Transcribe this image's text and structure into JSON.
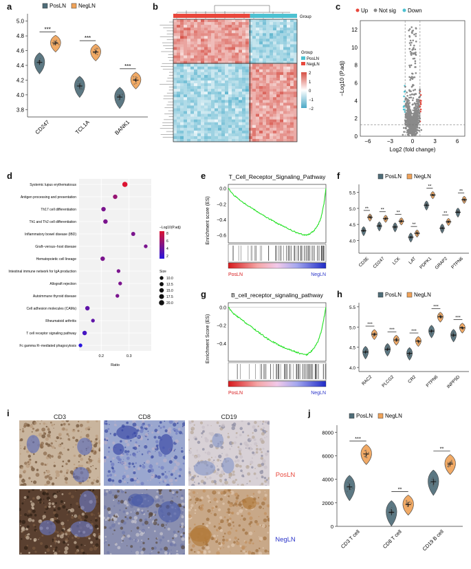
{
  "colors": {
    "pos": "#4f6d79",
    "neg": "#f0a35a",
    "up": "#e8473c",
    "down": "#4ec1d1",
    "notsig": "#8a8a8a",
    "green": "#1fe01f",
    "red": "#d7191c",
    "blue": "#2b35c9"
  },
  "panels": {
    "a": "a",
    "b": "b",
    "c": "c",
    "d": "d",
    "e": "e",
    "f": "f",
    "g": "g",
    "h": "h",
    "i": "i",
    "j": "j"
  },
  "legend": {
    "pos": "PosLN",
    "neg": "NegLN",
    "up": "Up",
    "notsig": "Not sig",
    "down": "Down",
    "group": "Group"
  },
  "sig": {
    "three": "***",
    "two": "**"
  },
  "chart_data": [
    {
      "id": "a",
      "type": "violin",
      "ylim": [
        3.7,
        5.1
      ],
      "yticks": [
        3.8,
        4.0,
        4.2,
        4.4,
        4.6,
        4.8,
        5.0
      ],
      "ytick_labels": [
        "3.8",
        "4.0",
        "4.2",
        "4.4",
        "4.6",
        "4.8",
        "5.0"
      ],
      "categories": [
        "CD247",
        "TCL1A",
        "BANK1"
      ],
      "series": [
        {
          "name": "PosLN",
          "means": [
            4.44,
            4.12,
            3.97
          ]
        },
        {
          "name": "NegLN",
          "means": [
            4.7,
            4.58,
            4.2
          ]
        }
      ],
      "significance": [
        "***",
        "***",
        "***"
      ]
    },
    {
      "id": "b",
      "type": "heatmap",
      "title": "Group",
      "groups": [
        "PosLN",
        "NegLN"
      ],
      "scale_ticks": [
        2,
        1,
        0,
        -1,
        -2
      ],
      "scale_labels": [
        "2",
        "1",
        "0",
        "−1",
        "−2"
      ]
    },
    {
      "id": "c",
      "type": "scatter",
      "xlabel": "Log2 (fold change)",
      "ylabel": "−Log10 (P.adj)",
      "xlim": [
        -7,
        7
      ],
      "ylim": [
        0,
        13
      ],
      "xticks": [
        -6,
        -3,
        0,
        3,
        6
      ],
      "xtick_labels": [
        "−6",
        "−3",
        "0",
        "3",
        "6"
      ],
      "yticks": [
        0,
        2,
        4,
        6,
        8,
        10,
        12
      ],
      "ytick_labels": [
        "0",
        "2",
        "4",
        "6",
        "8",
        "10",
        "12"
      ],
      "threshold_y": 1.3,
      "fc_threshold": 1
    },
    {
      "id": "d",
      "type": "dot",
      "xlabel": "Ratio",
      "xlim": [
        0.12,
        0.38
      ],
      "xticks": [
        0.2,
        0.3
      ],
      "xtick_labels": [
        "0.2",
        "0.3"
      ],
      "pathways": [
        {
          "label": "Systemic lupus erythematosus",
          "ratio": 0.285,
          "logp": 8.5,
          "size": 20
        },
        {
          "label": "Antigen processing and presentation",
          "ratio": 0.25,
          "logp": 6.0,
          "size": 15
        },
        {
          "label": "Th17 cell differentiation",
          "ratio": 0.208,
          "logp": 5.0,
          "size": 15
        },
        {
          "label": "Th1 and Th2 cell differentiation",
          "ratio": 0.215,
          "logp": 5.0,
          "size": 15
        },
        {
          "label": "Inflammatory bowel disease (IBD)",
          "ratio": 0.315,
          "logp": 5.0,
          "size": 12.5
        },
        {
          "label": "Graft−versus−host disease",
          "ratio": 0.36,
          "logp": 5.0,
          "size": 10
        },
        {
          "label": "Hematopoietic cell lineage",
          "ratio": 0.205,
          "logp": 5.0,
          "size": 15
        },
        {
          "label": "Intestinal immune network for IgA production",
          "ratio": 0.262,
          "logp": 5.0,
          "size": 10
        },
        {
          "label": "Allograft rejection",
          "ratio": 0.268,
          "logp": 5.0,
          "size": 10
        },
        {
          "label": "Autoimmune thyroid disease",
          "ratio": 0.258,
          "logp": 5.0,
          "size": 10
        },
        {
          "label": "Cell adhesion molecules (CAMs)",
          "ratio": 0.15,
          "logp": 4.0,
          "size": 15
        },
        {
          "label": "Rheumatoid arthritis",
          "ratio": 0.17,
          "logp": 4.0,
          "size": 10
        },
        {
          "label": "T cell receptor signaling pathway",
          "ratio": 0.14,
          "logp": 3.0,
          "size": 15
        },
        {
          "label": "Fc gamma R−mediated phagocytosis",
          "ratio": 0.125,
          "logp": 2.0,
          "size": 10
        }
      ],
      "color_title": "−Log10(P.adj)",
      "color_ticks": [
        "8",
        "6",
        "4",
        "2"
      ],
      "size_title": "Size",
      "size_ticks": [
        "10.0",
        "12.5",
        "15.0",
        "17.5",
        "20.0"
      ]
    },
    {
      "id": "e",
      "type": "line",
      "title": "T_Cell_Receptor_Signaling_Pathway",
      "ylabel": "Enrichment score (ES)",
      "ylim": [
        -0.7,
        0.05
      ],
      "yticks": [
        0,
        -0.2,
        -0.4,
        -0.6
      ],
      "ytick_labels": [
        "0.0",
        "−0.2",
        "−0.4",
        "−0.6"
      ],
      "x": [
        0,
        0.05,
        0.1,
        0.15,
        0.2,
        0.25,
        0.3,
        0.35,
        0.4,
        0.45,
        0.5,
        0.55,
        0.6,
        0.65,
        0.7,
        0.75,
        0.8,
        0.84,
        0.88,
        0.92,
        0.95,
        0.98,
        1.0
      ],
      "values": [
        0,
        -0.08,
        -0.13,
        -0.18,
        -0.22,
        -0.26,
        -0.3,
        -0.34,
        -0.38,
        -0.41,
        -0.45,
        -0.48,
        -0.51,
        -0.54,
        -0.57,
        -0.59,
        -0.6,
        -0.58,
        -0.54,
        -0.47,
        -0.38,
        -0.2,
        0.0
      ],
      "low_label": "PosLN",
      "high_label": "NegLN"
    },
    {
      "id": "f",
      "type": "violin",
      "ylim": [
        3.6,
        5.75
      ],
      "yticks": [
        4.0,
        4.5,
        5.0,
        5.5
      ],
      "ytick_labels": [
        "4.0",
        "4.5",
        "5.0",
        "5.5"
      ],
      "categories": [
        "CD3E",
        "CD247",
        "LCK",
        "LAT",
        "PDPK1",
        "GRAP2",
        "PTPN6"
      ],
      "series": [
        {
          "name": "PosLN",
          "means": [
            4.3,
            4.45,
            4.42,
            4.1,
            5.1,
            4.38,
            4.88
          ]
        },
        {
          "name": "NegLN",
          "means": [
            4.72,
            4.68,
            4.6,
            4.22,
            5.42,
            4.58,
            5.27
          ]
        }
      ],
      "significance": [
        "**",
        "**",
        "**",
        "**",
        "**",
        "**",
        "**"
      ]
    },
    {
      "id": "g",
      "type": "line",
      "title": "B_cell_receptor_signaling_pathway",
      "ylabel": "Enrichment Score (ES)",
      "ylim": [
        -0.6,
        0.05
      ],
      "yticks": [
        0,
        -0.2,
        -0.4
      ],
      "ytick_labels": [
        "0.0",
        "−0.2",
        "−0.4"
      ],
      "x": [
        0,
        0.05,
        0.1,
        0.15,
        0.2,
        0.25,
        0.3,
        0.35,
        0.4,
        0.45,
        0.5,
        0.55,
        0.6,
        0.65,
        0.7,
        0.75,
        0.8,
        0.84,
        0.88,
        0.92,
        0.95,
        0.98,
        1.0
      ],
      "values": [
        0,
        -0.07,
        -0.11,
        -0.15,
        -0.19,
        -0.23,
        -0.27,
        -0.31,
        -0.35,
        -0.38,
        -0.41,
        -0.44,
        -0.46,
        -0.48,
        -0.5,
        -0.52,
        -0.53,
        -0.5,
        -0.45,
        -0.38,
        -0.28,
        -0.12,
        0.0
      ],
      "low_label": "PosLN",
      "high_label": "NegLN"
    },
    {
      "id": "h",
      "type": "violin",
      "ylim": [
        3.9,
        5.6
      ],
      "yticks": [
        4.0,
        4.5,
        5.0,
        5.5
      ],
      "ytick_labels": [
        "4.0",
        "4.5",
        "5.0",
        "5.5"
      ],
      "categories": [
        "RAC2",
        "PLCG2",
        "CR2",
        "PTPN6",
        "INPP5D"
      ],
      "series": [
        {
          "name": "PosLN",
          "means": [
            4.38,
            4.45,
            4.35,
            4.9,
            4.8
          ]
        },
        {
          "name": "NegLN",
          "means": [
            4.82,
            4.68,
            4.65,
            5.25,
            4.98
          ]
        }
      ],
      "significance": [
        "***",
        "***",
        "***",
        "***",
        "***"
      ]
    },
    {
      "id": "j",
      "type": "violin",
      "ylim": [
        0,
        8600
      ],
      "yticks": [
        0,
        2000,
        4000,
        6000,
        8000
      ],
      "ytick_labels": [
        "0",
        "2000",
        "4000",
        "6000",
        "8000"
      ],
      "categories": [
        "CD3 T cell",
        "CD8 T cell",
        "CD19 B cell"
      ],
      "series": [
        {
          "name": "PosLN",
          "means": [
            3350,
            1200,
            3800
          ]
        },
        {
          "name": "NegLN",
          "means": [
            6150,
            1850,
            5300
          ]
        }
      ],
      "significance": [
        "***",
        "**",
        "**"
      ]
    }
  ],
  "ihc": {
    "columns": [
      "CD3",
      "CD8",
      "CD19"
    ],
    "rows": [
      "PosLN",
      "NegLN"
    ]
  }
}
